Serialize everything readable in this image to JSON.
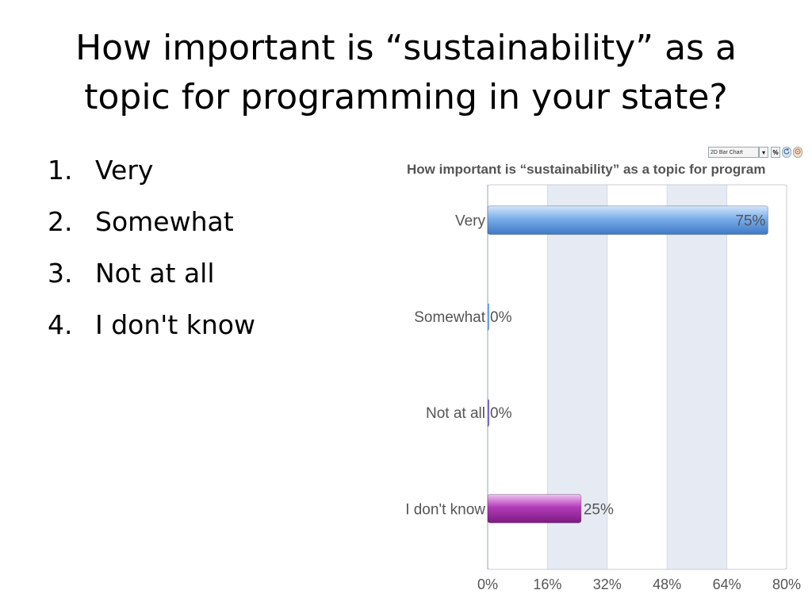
{
  "slide": {
    "title_line1": "How important is “sustainability” as a",
    "title_line2": "topic for programming in your state?",
    "options": [
      {
        "num": "1.",
        "label": "Very"
      },
      {
        "num": "2.",
        "label": "Somewhat"
      },
      {
        "num": "3.",
        "label": "Not at all"
      },
      {
        "num": "4.",
        "label": "I don't know"
      }
    ]
  },
  "toolbar": {
    "chart_type": "2D Bar Chart",
    "dropdown_glyph": "▾",
    "pct_glyph": "%",
    "refresh_icon": "refresh-icon",
    "print_icon": "print-icon"
  },
  "chart_data": {
    "type": "bar",
    "orientation": "horizontal",
    "title": "How important is “sustainability” as a topic for program",
    "categories": [
      "Very",
      "Somewhat",
      "Not at all",
      "I don't know"
    ],
    "values": [
      75,
      0,
      0,
      25
    ],
    "value_labels": [
      "75%",
      "0%",
      "0%",
      "25%"
    ],
    "bar_colors": [
      "#6fa3e0",
      "#6fa3e0",
      "#7b68c8",
      "#b23cb8"
    ],
    "xlim": [
      0,
      80
    ],
    "xticks": [
      0,
      16,
      32,
      48,
      64,
      80
    ],
    "xtick_labels": [
      "0%",
      "16%",
      "32%",
      "48%",
      "64%",
      "80%"
    ],
    "band_color": "#e6ebf3",
    "grid": true,
    "legend": "none"
  }
}
